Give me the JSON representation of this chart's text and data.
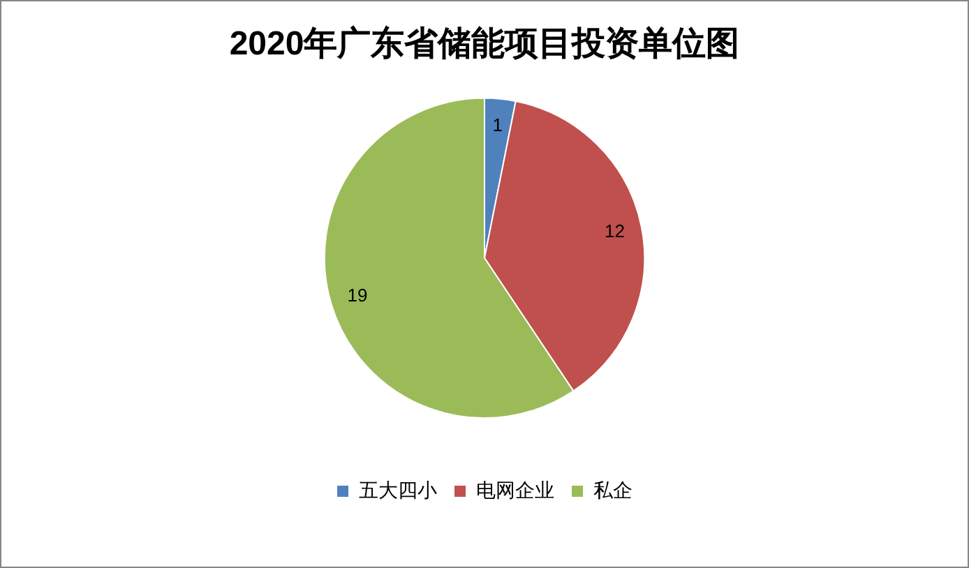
{
  "chart_data": {
    "type": "pie",
    "title": "2020年广东省储能项目投资单位图",
    "categories": [
      "五大四小",
      "电网企业",
      "私企"
    ],
    "values": [
      1,
      12,
      19
    ],
    "colors": [
      "#4f81bd",
      "#c0504d",
      "#9bbb59"
    ],
    "data_labels": true,
    "legend": "bottom"
  }
}
